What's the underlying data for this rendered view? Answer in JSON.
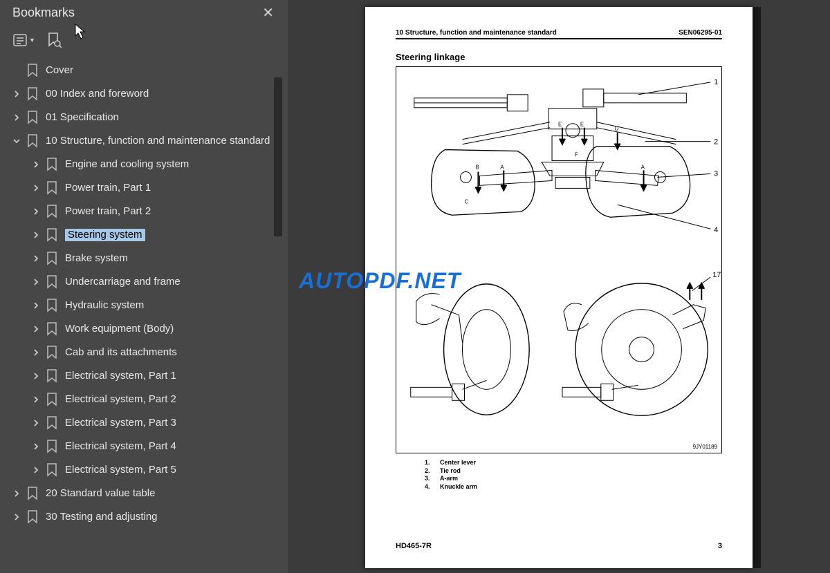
{
  "sidebar": {
    "title": "Bookmarks",
    "items": [
      {
        "label": "Cover",
        "level": 1,
        "hasChildren": false,
        "expanded": false,
        "selected": false
      },
      {
        "label": "00 Index and foreword",
        "level": 1,
        "hasChildren": true,
        "expanded": false,
        "selected": false
      },
      {
        "label": "01 Specification",
        "level": 1,
        "hasChildren": true,
        "expanded": false,
        "selected": false
      },
      {
        "label": "10 Structure, function and maintenance standard",
        "level": 1,
        "hasChildren": true,
        "expanded": true,
        "selected": false
      },
      {
        "label": "Engine and cooling system",
        "level": 2,
        "hasChildren": true,
        "expanded": false,
        "selected": false
      },
      {
        "label": "Power train, Part 1",
        "level": 2,
        "hasChildren": true,
        "expanded": false,
        "selected": false
      },
      {
        "label": "Power train, Part 2",
        "level": 2,
        "hasChildren": true,
        "expanded": false,
        "selected": false
      },
      {
        "label": "Steering system",
        "level": 2,
        "hasChildren": true,
        "expanded": false,
        "selected": true
      },
      {
        "label": "Brake system",
        "level": 2,
        "hasChildren": true,
        "expanded": false,
        "selected": false
      },
      {
        "label": "Undercarriage and frame",
        "level": 2,
        "hasChildren": true,
        "expanded": false,
        "selected": false
      },
      {
        "label": "Hydraulic system",
        "level": 2,
        "hasChildren": true,
        "expanded": false,
        "selected": false
      },
      {
        "label": "Work equipment (Body)",
        "level": 2,
        "hasChildren": true,
        "expanded": false,
        "selected": false
      },
      {
        "label": "Cab and its attachments",
        "level": 2,
        "hasChildren": true,
        "expanded": false,
        "selected": false
      },
      {
        "label": "Electrical system, Part 1",
        "level": 2,
        "hasChildren": true,
        "expanded": false,
        "selected": false
      },
      {
        "label": "Electrical system, Part 2",
        "level": 2,
        "hasChildren": true,
        "expanded": false,
        "selected": false
      },
      {
        "label": "Electrical system, Part 3",
        "level": 2,
        "hasChildren": true,
        "expanded": false,
        "selected": false
      },
      {
        "label": "Electrical system, Part 4",
        "level": 2,
        "hasChildren": true,
        "expanded": false,
        "selected": false
      },
      {
        "label": "Electrical system, Part 5",
        "level": 2,
        "hasChildren": true,
        "expanded": false,
        "selected": false
      },
      {
        "label": "20 Standard value table",
        "level": 1,
        "hasChildren": true,
        "expanded": false,
        "selected": false
      },
      {
        "label": "30 Testing and adjusting",
        "level": 1,
        "hasChildren": true,
        "expanded": false,
        "selected": false
      }
    ]
  },
  "page": {
    "headerLeft": "10 Structure, function and maintenance standard",
    "headerRight": "SEN06295-01",
    "sectionTitle": "Steering linkage",
    "diagramCode": "9JY01189",
    "callouts": [
      "1",
      "2",
      "3",
      "4",
      "17"
    ],
    "legend": [
      {
        "num": "1.",
        "text": "Center lever"
      },
      {
        "num": "2.",
        "text": "Tie rod"
      },
      {
        "num": "3.",
        "text": "A-arm"
      },
      {
        "num": "4.",
        "text": "Knuckle arm"
      }
    ],
    "footerLeft": "HD465-7R",
    "footerRight": "3"
  },
  "watermark": "AUTOPDF.NET",
  "colors": {
    "sidebarBg": "#474747",
    "contentBg": "#3b3b3b",
    "selectedBg": "#a6c8e6",
    "text": "#e8e8e8",
    "watermark": "#1a6fd4",
    "pageBg": "#ffffff",
    "border": "#000000"
  }
}
